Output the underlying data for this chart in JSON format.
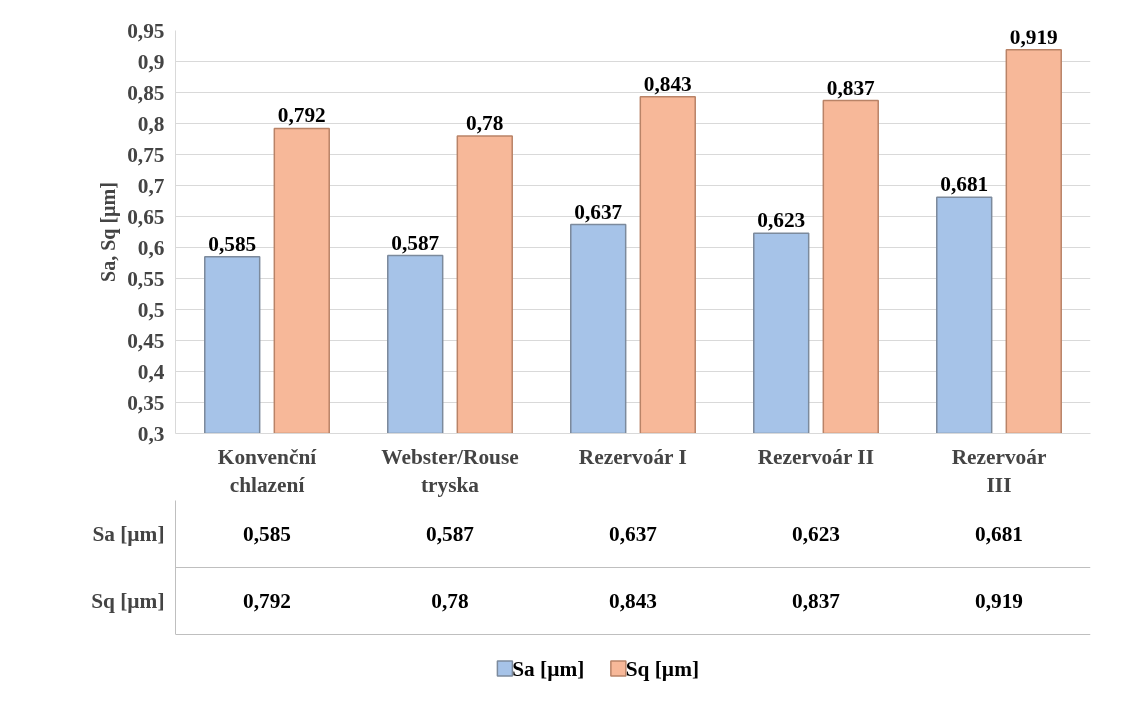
{
  "chart_data": {
    "type": "bar",
    "ylabel": "Sa, Sq [µm]",
    "categories": [
      "Konvenční chlazení",
      "Webster/Rouse tryska",
      "Rezervoár I",
      "Rezervoár II",
      "Rezervoár III"
    ],
    "series": [
      {
        "name": "Sa [µm]",
        "color": "#a6c3e8",
        "values": [
          0.585,
          0.587,
          0.637,
          0.623,
          0.681
        ],
        "value_labels": [
          "0,585",
          "0,587",
          "0,637",
          "0,623",
          "0,681"
        ]
      },
      {
        "name": "Sq [µm]",
        "color": "#f7b899",
        "values": [
          0.792,
          0.78,
          0.843,
          0.837,
          0.919
        ],
        "value_labels": [
          "0,792",
          "0,78",
          "0,843",
          "0,837",
          "0,919"
        ]
      }
    ],
    "ylim": [
      0.3,
      0.95
    ],
    "yticks": [
      {
        "value": 0.3,
        "label": "0,3"
      },
      {
        "value": 0.35,
        "label": "0,35"
      },
      {
        "value": 0.4,
        "label": "0,4"
      },
      {
        "value": 0.45,
        "label": "0,45"
      },
      {
        "value": 0.5,
        "label": "0,5"
      },
      {
        "value": 0.55,
        "label": "0,55"
      },
      {
        "value": 0.6,
        "label": "0,6"
      },
      {
        "value": 0.65,
        "label": "0,65"
      },
      {
        "value": 0.7,
        "label": "0,7"
      },
      {
        "value": 0.75,
        "label": "0,75"
      },
      {
        "value": 0.8,
        "label": "0,8"
      },
      {
        "value": 0.85,
        "label": "0,85"
      },
      {
        "value": 0.9,
        "label": "0,9"
      },
      {
        "value": 0.95,
        "label": "0,95"
      }
    ],
    "grid": "y",
    "legend": "bottom"
  }
}
